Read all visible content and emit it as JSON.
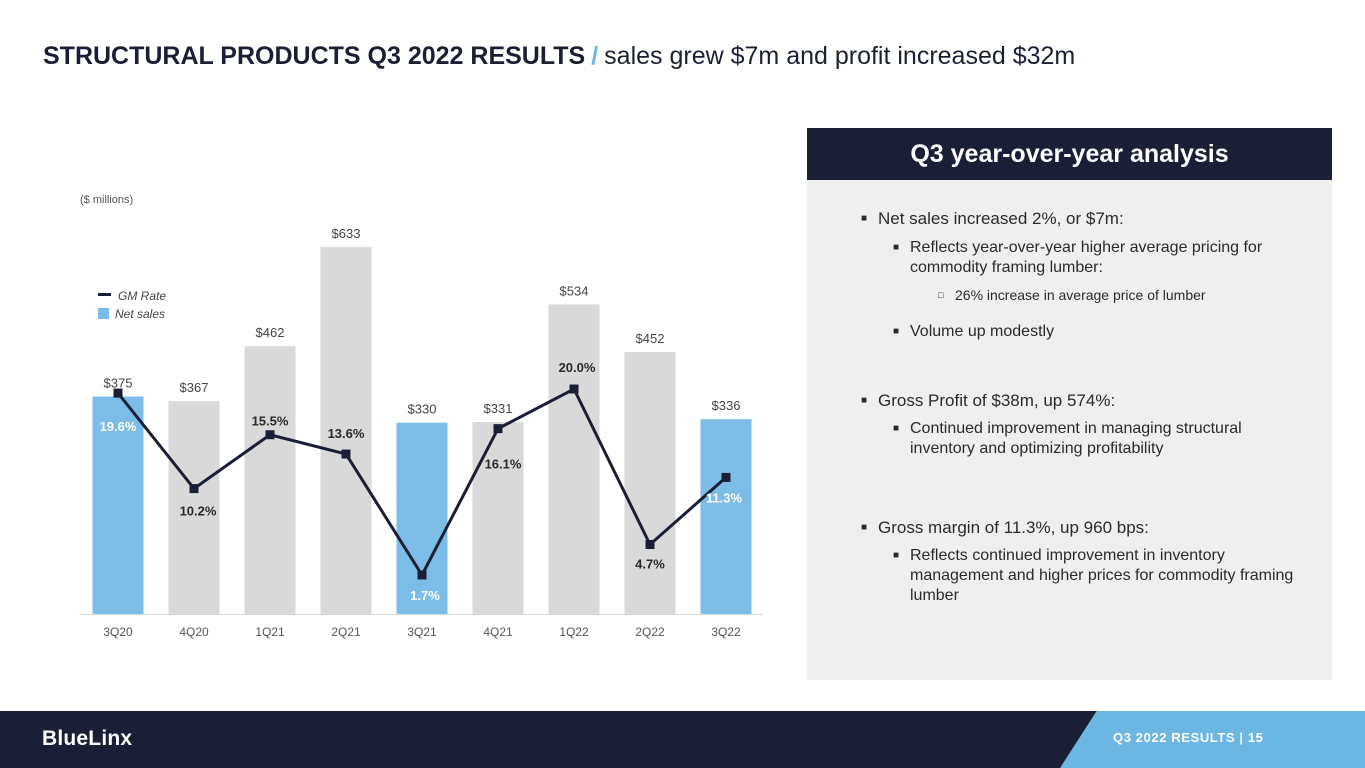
{
  "header": {
    "title_bold": "STRUCTURAL PRODUCTS Q3 2022 RESULTS",
    "separator": "/",
    "title_sub": "sales grew $7m and profit increased $32m"
  },
  "chart_data": {
    "type": "bar",
    "units_note": "($ millions)",
    "categories": [
      "3Q20",
      "4Q20",
      "1Q21",
      "2Q21",
      "3Q21",
      "4Q21",
      "1Q22",
      "2Q22",
      "3Q22"
    ],
    "series": [
      {
        "name": "Net sales",
        "type": "bar",
        "values": [
          375,
          367,
          462,
          633,
          330,
          331,
          534,
          452,
          336
        ],
        "labels": [
          "$375",
          "$367",
          "$462",
          "$633",
          "$330",
          "$331",
          "$534",
          "$452",
          "$336"
        ],
        "highlight": [
          true,
          false,
          false,
          false,
          true,
          false,
          false,
          false,
          true
        ]
      },
      {
        "name": "GM Rate",
        "type": "line",
        "values": [
          19.6,
          10.2,
          15.5,
          13.6,
          1.7,
          16.1,
          20.0,
          4.7,
          11.3
        ],
        "labels": [
          "19.6%",
          "10.2%",
          "15.5%",
          "13.6%",
          "1.7%",
          "16.1%",
          "20.0%",
          "4.7%",
          "11.3%"
        ]
      }
    ],
    "legend": {
      "position": "top-left",
      "entries": [
        "GM Rate",
        "Net sales"
      ]
    },
    "colors": {
      "bar_highlight": "#7bbde6",
      "bar_default": "#d9d9d9",
      "line": "#1b1f36"
    },
    "grid": false
  },
  "panel": {
    "header": "Q3 year-over-year analysis",
    "bullets": [
      "Net sales increased 2%, or $7m:",
      "Reflects year-over-year higher average pricing for commodity framing lumber:",
      "26% increase in average price of lumber",
      "Volume up modestly",
      "Gross Profit of $38m, up 574%:",
      "Continued improvement in managing structural inventory and optimizing profitability",
      "Gross margin of 11.3%, up 960 bps:",
      "Reflects continued improvement in inventory management and higher prices for commodity framing lumber"
    ]
  },
  "footer": {
    "logo": "BlueLinx",
    "text": "Q3 2022 RESULTS   |   15"
  }
}
